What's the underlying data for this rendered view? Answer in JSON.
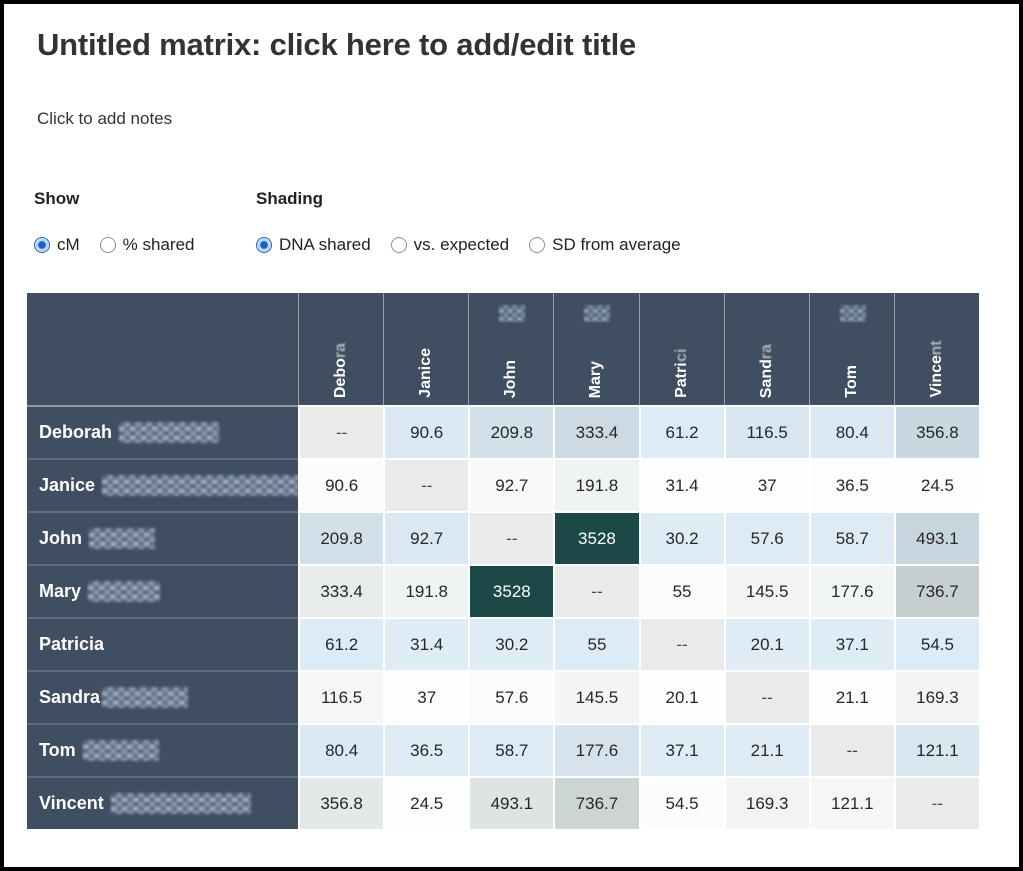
{
  "title": "Untitled matrix: click here to add/edit title",
  "notes_placeholder": "Click to add notes",
  "controls": {
    "show": {
      "label": "Show",
      "options": [
        {
          "label": "cM",
          "selected": true
        },
        {
          "label": "% shared",
          "selected": false
        }
      ]
    },
    "shading": {
      "label": "Shading",
      "options": [
        {
          "label": "DNA shared",
          "selected": true
        },
        {
          "label": "vs. expected",
          "selected": false
        },
        {
          "label": "SD from average",
          "selected": false
        }
      ]
    }
  },
  "colors": {
    "header_bg": "#3f4e60",
    "header_text": "#ffffff",
    "diag_bg": "#e9eaea",
    "max_cell_bg": "#1d4848",
    "radio_selected": "#1a63c4",
    "frame_border": "#000000"
  },
  "matrix": {
    "unit": "cM",
    "columns": [
      {
        "label": "Debora",
        "blur_tail": true,
        "blob": false
      },
      {
        "label": "Janice",
        "blur_tail": false,
        "blob": false
      },
      {
        "label": "John",
        "blur_tail": false,
        "blob": true
      },
      {
        "label": "Mary",
        "blur_tail": false,
        "blob": true
      },
      {
        "label": "Patrici",
        "blur_tail": true,
        "blob": false
      },
      {
        "label": "Sandra",
        "blur_tail": true,
        "blob": false
      },
      {
        "label": "Tom",
        "blur_tail": false,
        "blob": true
      },
      {
        "label": "Vincent",
        "blur_tail": true,
        "blob": false
      }
    ],
    "rows": [
      {
        "label": "Deborah",
        "blur_width": 100,
        "cells": [
          {
            "v": "--",
            "bg": "#e9eaea",
            "diag": true
          },
          {
            "v": "90.6",
            "bg": "#dae8f3"
          },
          {
            "v": "209.8",
            "bg": "#d2e0ea"
          },
          {
            "v": "333.4",
            "bg": "#cdd9e3"
          },
          {
            "v": "61.2",
            "bg": "#dcebf5"
          },
          {
            "v": "116.5",
            "bg": "#d8e6f1"
          },
          {
            "v": "80.4",
            "bg": "#dbe9f4"
          },
          {
            "v": "356.8",
            "bg": "#c9d7e1"
          }
        ]
      },
      {
        "label": "Janice",
        "blur_width": 228,
        "cells": [
          {
            "v": "90.6",
            "bg": "#fafbfb"
          },
          {
            "v": "--",
            "bg": "#e9eaea",
            "diag": true
          },
          {
            "v": "92.7",
            "bg": "#f8f9f9"
          },
          {
            "v": "191.8",
            "bg": "#f0f3f3"
          },
          {
            "v": "31.4",
            "bg": "#fdfdfd"
          },
          {
            "v": "37",
            "bg": "#fcfdfd"
          },
          {
            "v": "36.5",
            "bg": "#fcfdfd"
          },
          {
            "v": "24.5",
            "bg": "#fdfefe"
          }
        ]
      },
      {
        "label": "John",
        "blur_width": 66,
        "cells": [
          {
            "v": "209.8",
            "bg": "#d2e0ea"
          },
          {
            "v": "92.7",
            "bg": "#d9e8f2"
          },
          {
            "v": "--",
            "bg": "#e9eaea",
            "diag": true
          },
          {
            "v": "3528",
            "bg": "#1d4848",
            "fg": "#ffffff"
          },
          {
            "v": "30.2",
            "bg": "#deecf6"
          },
          {
            "v": "57.6",
            "bg": "#dcebf5"
          },
          {
            "v": "58.7",
            "bg": "#dcebf5"
          },
          {
            "v": "493.1",
            "bg": "#c7d5df"
          }
        ]
      },
      {
        "label": "Mary",
        "blur_width": 72,
        "cells": [
          {
            "v": "333.4",
            "bg": "#e8ebeb"
          },
          {
            "v": "191.8",
            "bg": "#f0f3f3"
          },
          {
            "v": "3528",
            "bg": "#1d4848",
            "fg": "#ffffff"
          },
          {
            "v": "--",
            "bg": "#e9eaea",
            "diag": true
          },
          {
            "v": "55",
            "bg": "#fbfcfc"
          },
          {
            "v": "145.5",
            "bg": "#f3f5f5"
          },
          {
            "v": "177.6",
            "bg": "#f1f4f4"
          },
          {
            "v": "736.7",
            "bg": "#c6cfcf"
          }
        ]
      },
      {
        "label": "Patricia",
        "blur_width": 0,
        "cells": [
          {
            "v": "61.2",
            "bg": "#dcebf5"
          },
          {
            "v": "31.4",
            "bg": "#deecf6"
          },
          {
            "v": "30.2",
            "bg": "#deecf6"
          },
          {
            "v": "55",
            "bg": "#dcebf5"
          },
          {
            "v": "--",
            "bg": "#e9eaea",
            "diag": true
          },
          {
            "v": "20.1",
            "bg": "#dfecf6"
          },
          {
            "v": "37.1",
            "bg": "#deecf6"
          },
          {
            "v": "54.5",
            "bg": "#dcebf5"
          }
        ]
      },
      {
        "label": "Sandra",
        "blur_width": 86,
        "tight": true,
        "cells": [
          {
            "v": "116.5",
            "bg": "#f5f7f7"
          },
          {
            "v": "37",
            "bg": "#fcfdfd"
          },
          {
            "v": "57.6",
            "bg": "#fafbfb"
          },
          {
            "v": "145.5",
            "bg": "#f3f5f5"
          },
          {
            "v": "20.1",
            "bg": "#fdfdfd"
          },
          {
            "v": "--",
            "bg": "#e9eaea",
            "diag": true
          },
          {
            "v": "21.1",
            "bg": "#fdfdfd"
          },
          {
            "v": "169.3",
            "bg": "#f2f4f4"
          }
        ]
      },
      {
        "label": "Tom",
        "blur_width": 76,
        "cells": [
          {
            "v": "80.4",
            "bg": "#dbe9f4"
          },
          {
            "v": "36.5",
            "bg": "#deecf6"
          },
          {
            "v": "58.7",
            "bg": "#dcebf5"
          },
          {
            "v": "177.6",
            "bg": "#d6e3ed"
          },
          {
            "v": "37.1",
            "bg": "#deecf6"
          },
          {
            "v": "21.1",
            "bg": "#dfecf6"
          },
          {
            "v": "--",
            "bg": "#e9eaea",
            "diag": true
          },
          {
            "v": "121.1",
            "bg": "#d9e7f1"
          }
        ]
      },
      {
        "label": "Vincent",
        "blur_width": 140,
        "cells": [
          {
            "v": "356.8",
            "bg": "#e3e8e8"
          },
          {
            "v": "24.5",
            "bg": "#fdfefe"
          },
          {
            "v": "493.1",
            "bg": "#dee4e4"
          },
          {
            "v": "736.7",
            "bg": "#ccd4d4"
          },
          {
            "v": "54.5",
            "bg": "#fbfcfc"
          },
          {
            "v": "169.3",
            "bg": "#f2f4f4"
          },
          {
            "v": "121.1",
            "bg": "#f5f7f7"
          },
          {
            "v": "--",
            "bg": "#e9eaea",
            "diag": true
          }
        ]
      }
    ]
  }
}
